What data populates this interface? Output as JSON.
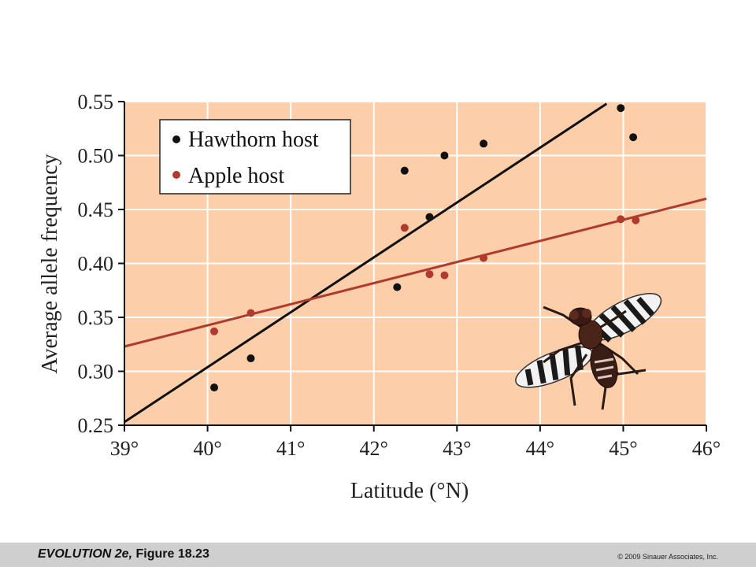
{
  "chart_data": {
    "type": "scatter",
    "xlabel": "Latitude (°N)",
    "ylabel": "Average allele frequency",
    "xlim": [
      39,
      46
    ],
    "ylim": [
      0.25,
      0.55
    ],
    "x_ticks": [
      39,
      40,
      41,
      42,
      43,
      44,
      45,
      46
    ],
    "x_tick_labels": [
      "39°",
      "40°",
      "41°",
      "42°",
      "43°",
      "44°",
      "45°",
      "46°"
    ],
    "y_ticks": [
      0.25,
      0.3,
      0.35,
      0.4,
      0.45,
      0.5,
      0.55
    ],
    "y_tick_labels": [
      "0.25",
      "0.30",
      "0.35",
      "0.40",
      "0.45",
      "0.50",
      "0.55"
    ],
    "grid": true,
    "legend_position": "top-left",
    "background_color": "#fccfaa",
    "series": [
      {
        "name": "Hawthorn host",
        "color": "#111111",
        "points": [
          [
            40.08,
            0.285
          ],
          [
            40.52,
            0.312
          ],
          [
            42.28,
            0.378
          ],
          [
            42.37,
            0.486
          ],
          [
            42.67,
            0.443
          ],
          [
            42.85,
            0.5
          ],
          [
            43.32,
            0.511
          ],
          [
            44.97,
            0.544
          ],
          [
            45.12,
            0.517
          ]
        ],
        "trendline": [
          [
            39.0,
            0.253
          ],
          [
            44.8,
            0.548
          ]
        ]
      },
      {
        "name": "Apple host",
        "color": "#b03a2e",
        "points": [
          [
            40.08,
            0.337
          ],
          [
            40.52,
            0.354
          ],
          [
            42.37,
            0.433
          ],
          [
            42.67,
            0.39
          ],
          [
            42.85,
            0.389
          ],
          [
            43.32,
            0.405
          ],
          [
            44.97,
            0.441
          ],
          [
            45.15,
            0.44
          ]
        ],
        "trendline": [
          [
            39.0,
            0.323
          ],
          [
            46.0,
            0.46
          ]
        ]
      }
    ]
  },
  "illustration": {
    "icon": "fly-icon"
  },
  "footer": {
    "caption_italic": "EVOLUTION 2e,",
    "caption_rest": " Figure 18.23",
    "copyright": "© 2009 Sinauer Associates, Inc."
  }
}
